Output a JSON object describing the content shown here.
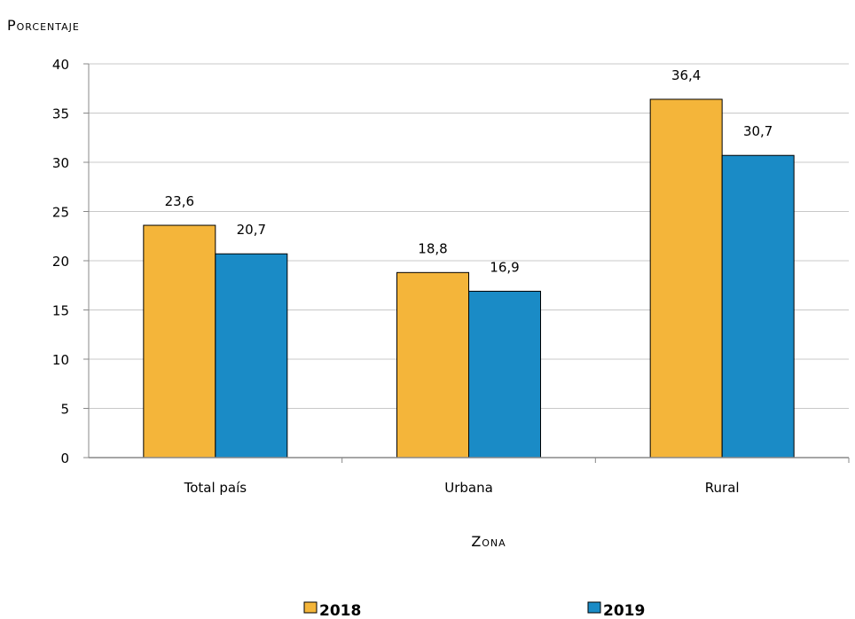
{
  "chart_data": {
    "type": "bar",
    "ylabel": "Porcentaje",
    "xlabel": "Zona",
    "categories": [
      "Total país",
      "Urbana",
      "Rural"
    ],
    "series": [
      {
        "name": "2018",
        "color": "#F4B53A",
        "values": [
          23.6,
          18.8,
          36.4
        ],
        "labels": [
          "23,6",
          "18,8",
          "36,4"
        ]
      },
      {
        "name": "2019",
        "color": "#1A8BC6",
        "values": [
          20.7,
          16.9,
          30.7
        ],
        "labels": [
          "20,7",
          "16,9",
          "30,7"
        ]
      }
    ],
    "ylim": [
      0,
      40
    ],
    "yticks": [
      0,
      5,
      10,
      15,
      20,
      25,
      30,
      35,
      40
    ],
    "grid": true,
    "legend_position": "bottom"
  }
}
